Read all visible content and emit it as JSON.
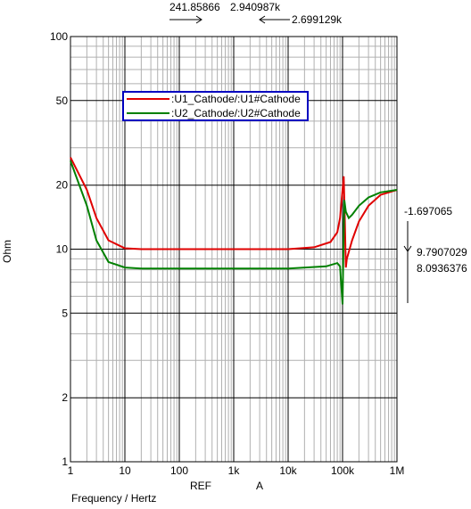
{
  "chart_data": {
    "type": "line",
    "title": null,
    "x_label": "Frequency / Hertz",
    "y_label": "Ohm",
    "log_x": true,
    "log_y": true,
    "grid": true,
    "xlim": [
      1,
      1000000
    ],
    "ylim": [
      1,
      100
    ],
    "xticks": [
      {
        "value": 1,
        "label": "1"
      },
      {
        "value": 10,
        "label": "10"
      },
      {
        "value": 100,
        "label": "100"
      },
      {
        "value": 1000,
        "label": "1k"
      },
      {
        "value": 10000,
        "label": "10k"
      },
      {
        "value": 100000,
        "label": "100k"
      },
      {
        "value": 1000000,
        "label": "1M"
      }
    ],
    "yticks": [
      1,
      2,
      5,
      10,
      20,
      50,
      100
    ],
    "series": [
      {
        "name": ":U1_Cathode/:U1#Cathode",
        "color": "#e00000",
        "x": [
          1,
          2,
          3,
          5,
          10,
          20,
          100,
          1000,
          10000,
          30000,
          60000,
          80000,
          90000,
          100000,
          105000,
          110000,
          115000,
          120000,
          150000,
          200000,
          300000,
          500000,
          1000000
        ],
        "values": [
          27,
          19,
          14,
          11,
          10.1,
          10,
          10,
          10,
          10,
          10.2,
          10.8,
          12,
          14,
          19,
          22,
          14,
          8.2,
          9,
          11,
          13.5,
          16,
          18,
          19
        ]
      },
      {
        "name": ":U2_Cathode/:U2#Cathode",
        "color": "#008000",
        "x": [
          1,
          2,
          3,
          5,
          10,
          20,
          100,
          1000,
          10000,
          50000,
          80000,
          90000,
          100000,
          103000,
          108000,
          115000,
          130000,
          150000,
          200000,
          300000,
          500000,
          1000000
        ],
        "values": [
          26,
          16,
          11,
          8.7,
          8.2,
          8.1,
          8.1,
          8.1,
          8.1,
          8.3,
          8.6,
          8.3,
          5.5,
          9,
          17,
          15,
          14,
          14.5,
          16,
          17.5,
          18.5,
          19
        ]
      }
    ],
    "annotations": [
      "241.85866",
      "2.940987k",
      "2.699129k",
      "-1.697065",
      "9.7907029",
      "8.0936376",
      "REF",
      "A"
    ]
  }
}
